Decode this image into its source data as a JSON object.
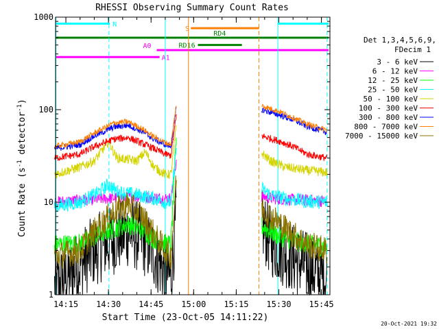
{
  "chart_data": {
    "type": "line",
    "title": "RHESSI Observing Summary Count Rates",
    "xlabel": "Start Time (23-Oct-05 14:11:22)",
    "ylabel_main": "Count Rate (s",
    "ylabel_sup1": "-1",
    "ylabel_mid": " detector",
    "ylabel_sup2": "-1",
    "ylabel_end": ")",
    "y_scale": "log",
    "ylim": [
      1,
      1000
    ],
    "xlim": [
      "14:11:22",
      "15:48:00"
    ],
    "x_ticks": [
      "14:15",
      "14:30",
      "14:45",
      "15:00",
      "15:15",
      "15:30",
      "15:45"
    ],
    "y_ticks": [
      "1",
      "10",
      "100",
      "1000"
    ],
    "grid": false,
    "legend_placement": "right",
    "legend_header": [
      "Det 1,3,4,5,6,9,",
      "FDecim 1"
    ],
    "gap": [
      "14:57:30",
      "15:23:00"
    ],
    "series": [
      {
        "name": "3 - 6 keV",
        "color": "#000000",
        "x": [
          "14:11",
          "14:20",
          "14:25",
          "14:32",
          "14:37",
          "14:42",
          "14:46",
          "14:50",
          "14:52",
          "14:54"
        ],
        "values": [
          1.2,
          2.1,
          3.0,
          4.0,
          4.8,
          4.0,
          2.8,
          1.8,
          1.5,
          8.0
        ],
        "post_x": [
          "15:24",
          "15:27",
          "15:30",
          "15:35",
          "15:40",
          "15:45",
          "15:47"
        ],
        "post_values": [
          5.8,
          3.8,
          3.2,
          2.5,
          2.0,
          1.6,
          1.5
        ]
      },
      {
        "name": "6 - 12 keV",
        "color": "#ff00ff",
        "x": [
          "14:11",
          "14:20",
          "14:30",
          "14:40",
          "14:46",
          "14:50",
          "14:52",
          "14:54"
        ],
        "values": [
          10.0,
          10.5,
          11.0,
          11.5,
          11.2,
          11.0,
          11.0,
          30.0
        ],
        "post_x": [
          "15:24",
          "15:30",
          "15:40",
          "15:47"
        ],
        "post_values": [
          11.5,
          10.8,
          10.5,
          10.2
        ]
      },
      {
        "name": "12 - 25 keV",
        "color": "#00ff00",
        "x": [
          "14:11",
          "14:20",
          "14:25",
          "14:32",
          "14:37",
          "14:42",
          "14:46",
          "14:50",
          "14:52",
          "14:54"
        ],
        "values": [
          3.5,
          3.6,
          4.2,
          5.2,
          5.8,
          5.0,
          4.0,
          3.6,
          3.5,
          60.0
        ],
        "post_x": [
          "15:24",
          "15:30",
          "15:35",
          "15:40",
          "15:47"
        ],
        "post_values": [
          5.5,
          4.3,
          3.8,
          3.5,
          3.3
        ]
      },
      {
        "name": "25 - 50 keV",
        "color": "#00ffff",
        "x": [
          "14:11",
          "14:20",
          "14:26",
          "14:30",
          "14:33",
          "14:40",
          "14:46",
          "14:50",
          "14:52",
          "14:54"
        ],
        "values": [
          9.0,
          10.0,
          12.5,
          15.5,
          13.0,
          12.0,
          11.0,
          10.0,
          10.0,
          40.0
        ],
        "post_x": [
          "15:24",
          "15:27",
          "15:32",
          "15:40",
          "15:47"
        ],
        "post_values": [
          14.0,
          12.0,
          11.0,
          10.2,
          10.0
        ]
      },
      {
        "name": "50 - 100 keV",
        "color": "#d4d400",
        "x": [
          "14:11",
          "14:20",
          "14:25",
          "14:30",
          "14:33",
          "14:40",
          "14:43",
          "14:46",
          "14:50",
          "14:52",
          "14:54"
        ],
        "values": [
          20.0,
          24.0,
          28.0,
          45.0,
          30.0,
          28.0,
          35.0,
          24.0,
          20.0,
          20.0,
          70.0
        ],
        "post_x": [
          "15:24",
          "15:27",
          "15:32",
          "15:40",
          "15:47"
        ],
        "post_values": [
          34.0,
          28.0,
          24.0,
          22.0,
          21.0
        ]
      },
      {
        "name": "100 - 300 keV",
        "color": "#ff0000",
        "x": [
          "14:11",
          "14:20",
          "14:25",
          "14:32",
          "14:37",
          "14:42",
          "14:46",
          "14:50",
          "14:52",
          "14:54"
        ],
        "values": [
          30.0,
          33.0,
          40.0,
          48.0,
          50.0,
          43.0,
          38.0,
          33.0,
          32.0,
          90.0
        ],
        "post_x": [
          "15:24",
          "15:30",
          "15:35",
          "15:40",
          "15:47"
        ],
        "post_values": [
          52.0,
          46.0,
          40.0,
          33.0,
          30.0
        ]
      },
      {
        "name": "300 - 800 keV",
        "color": "#0000ff",
        "x": [
          "14:11",
          "14:20",
          "14:25",
          "14:32",
          "14:37",
          "14:42",
          "14:46",
          "14:50",
          "14:52",
          "14:54"
        ],
        "values": [
          38.0,
          42.0,
          52.0,
          65.0,
          68.0,
          58.0,
          48.0,
          42.0,
          40.0,
          110.0
        ],
        "post_x": [
          "15:24",
          "15:30",
          "15:35",
          "15:40",
          "15:47"
        ],
        "post_values": [
          100.0,
          88.0,
          78.0,
          66.0,
          57.0
        ]
      },
      {
        "name": "800 - 7000 keV",
        "color": "#ff8000",
        "x": [
          "14:11",
          "14:20",
          "14:25",
          "14:32",
          "14:37",
          "14:42",
          "14:46",
          "14:50",
          "14:52",
          "14:54"
        ],
        "values": [
          40.0,
          45.0,
          56.0,
          72.0,
          74.0,
          62.0,
          51.0,
          44.0,
          42.0,
          120.0
        ],
        "post_x": [
          "15:24",
          "15:30",
          "15:35",
          "15:40",
          "15:47"
        ],
        "post_values": [
          110.0,
          96.0,
          82.0,
          70.0,
          60.0
        ]
      },
      {
        "name": "7000 - 15000 keV",
        "color": "#8b7300",
        "x": [
          "14:11",
          "14:20",
          "14:25",
          "14:32",
          "14:37",
          "14:42",
          "14:46",
          "14:50",
          "14:52",
          "14:54"
        ],
        "values": [
          2.6,
          3.0,
          4.8,
          8.0,
          9.5,
          7.0,
          4.5,
          3.0,
          2.6,
          20.0
        ],
        "post_x": [
          "15:24",
          "15:30",
          "15:35",
          "15:40",
          "15:47"
        ],
        "post_values": [
          8.5,
          6.0,
          4.5,
          3.5,
          3.0
        ]
      }
    ],
    "vertical_lines": [
      {
        "time": "14:11:30",
        "color": "#00ffff",
        "style": "solid"
      },
      {
        "time": "14:30:10",
        "color": "#00ffff",
        "style": "dashed"
      },
      {
        "time": "14:50:00",
        "color": "#00ffff",
        "style": "solid"
      },
      {
        "time": "14:58:10",
        "color": "#ff8000",
        "style": "solid"
      },
      {
        "time": "15:23:00",
        "color": "#ff8000",
        "style": "dashed"
      },
      {
        "time": "15:29:40",
        "color": "#00ffff",
        "style": "solid"
      },
      {
        "time": "15:47:00",
        "color": "#00ffff",
        "style": "dashed"
      }
    ],
    "flag_bars": [
      {
        "label": "N",
        "color": "#00ffff",
        "level": 850,
        "segments": [
          [
            "14:11:22",
            "14:30:30"
          ],
          [
            "15:29:40",
            "15:47:30"
          ]
        ]
      },
      {
        "label": "S",
        "color": "#ff8000",
        "level": 760,
        "segments": [
          [
            "14:59:00",
            "15:23:00"
          ]
        ]
      },
      {
        "label": "RD4",
        "color": "#008000",
        "level": 600,
        "segments": [
          [
            "14:11:22",
            "15:47:30"
          ]
        ]
      },
      {
        "label": "RD16",
        "color": "#008000",
        "level": 500,
        "segments": [
          [
            "15:01:30",
            "15:17:00"
          ]
        ]
      },
      {
        "label": "A0",
        "color": "#ff00ff",
        "level": 440,
        "segments": [
          [
            "14:47:00",
            "15:47:30"
          ]
        ]
      },
      {
        "label": "A1",
        "color": "#ff00ff",
        "level": 370,
        "segments": [
          [
            "14:11:22",
            "14:48:00"
          ]
        ]
      }
    ],
    "footer_timestamp": "20-Oct-2021 19:32"
  }
}
